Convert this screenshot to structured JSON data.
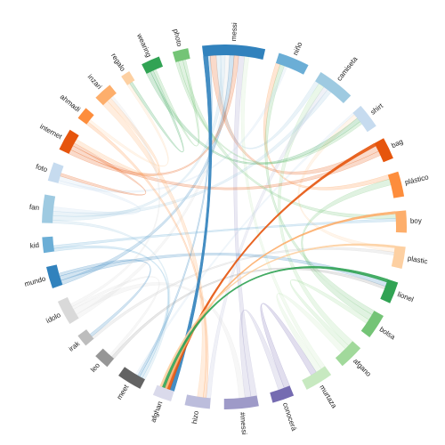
{
  "chart_data": {
    "type": "chord",
    "groups": [
      {
        "name": "messi",
        "color": "#3182bd",
        "value": 20
      },
      {
        "name": "niño",
        "color": "#6baed6",
        "value": 10
      },
      {
        "name": "camiseta",
        "color": "#9ecae1",
        "value": 12
      },
      {
        "name": "shirt",
        "color": "#c6dbef",
        "value": 8
      },
      {
        "name": "bag",
        "color": "#e6550d",
        "value": 7
      },
      {
        "name": "plástico",
        "color": "#fd8d3c",
        "value": 8
      },
      {
        "name": "boy",
        "color": "#fdae6b",
        "value": 7
      },
      {
        "name": "plastic",
        "color": "#fdd0a2",
        "value": 7
      },
      {
        "name": "lionel",
        "color": "#31a354",
        "value": 7
      },
      {
        "name": "bolsa",
        "color": "#74c476",
        "value": 8
      },
      {
        "name": "afgano",
        "color": "#a1d99b",
        "value": 8
      },
      {
        "name": "murtaza",
        "color": "#c7e9c0",
        "value": 9
      },
      {
        "name": "conocerá",
        "color": "#756bb1",
        "value": 7
      },
      {
        "name": "#messi",
        "color": "#9e9ac8",
        "value": 11
      },
      {
        "name": "hizo",
        "color": "#bcbddc",
        "value": 8
      },
      {
        "name": "afghan",
        "color": "#dadaeb",
        "value": 6
      },
      {
        "name": "meet",
        "color": "#636363",
        "value": 8
      },
      {
        "name": "leo",
        "color": "#969696",
        "value": 5
      },
      {
        "name": "irak",
        "color": "#bdbdbd",
        "value": 4
      },
      {
        "name": "ídolo",
        "color": "#d9d9d9",
        "value": 8
      },
      {
        "name": "mundo",
        "color": "#3182bd",
        "value": 7
      },
      {
        "name": "kid",
        "color": "#6baed6",
        "value": 5
      },
      {
        "name": "fan",
        "color": "#9ecae1",
        "value": 9
      },
      {
        "name": "foto",
        "color": "#c6dbef",
        "value": 6
      },
      {
        "name": "internet",
        "color": "#e6550d",
        "value": 7
      },
      {
        "name": "ahmadi",
        "color": "#fd8d3c",
        "value": 4
      },
      {
        "name": "inzari",
        "color": "#fdae6b",
        "value": 6
      },
      {
        "name": "regalo",
        "color": "#fdd0a2",
        "value": 3
      },
      {
        "name": "wearing",
        "color": "#31a354",
        "value": 6
      },
      {
        "name": "photo",
        "color": "#74c476",
        "value": 5
      }
    ],
    "highlight": "afghan",
    "links": [
      {
        "source": "afghan",
        "target": "messi",
        "value": 1.5
      },
      {
        "source": "afghan",
        "target": "bag",
        "value": 1
      },
      {
        "source": "afghan",
        "target": "boy",
        "value": 0.8
      },
      {
        "source": "afghan",
        "target": "lionel",
        "value": 1
      },
      {
        "source": "afghan",
        "target": "plastic",
        "value": 0.7
      },
      {
        "source": "meet",
        "target": "fan",
        "value": 1
      },
      {
        "source": "meet",
        "target": "kid",
        "value": 1
      },
      {
        "source": "meet",
        "target": "messi",
        "value": 0.8
      },
      {
        "source": "meet",
        "target": "shirt",
        "value": 0.8
      },
      {
        "source": "messi",
        "target": "bag",
        "value": 2
      },
      {
        "source": "messi",
        "target": "camiseta",
        "value": 1.5
      },
      {
        "source": "messi",
        "target": "fan",
        "value": 1.5
      },
      {
        "source": "messi",
        "target": "ídolo",
        "value": 1.5
      },
      {
        "source": "messi",
        "target": "mundo",
        "value": 1.5
      },
      {
        "source": "messi",
        "target": "internet",
        "value": 1.5
      },
      {
        "source": "messi",
        "target": "#messi",
        "value": 2
      },
      {
        "source": "messi",
        "target": "murtaza",
        "value": 1.5
      },
      {
        "source": "niño",
        "target": "plástico",
        "value": 1.5
      },
      {
        "source": "niño",
        "target": "bolsa",
        "value": 1.5
      },
      {
        "source": "niño",
        "target": "foto",
        "value": 1
      },
      {
        "source": "camiseta",
        "target": "afgano",
        "value": 2
      },
      {
        "source": "camiseta",
        "target": "hizo",
        "value": 1.5
      },
      {
        "source": "camiseta",
        "target": "fan",
        "value": 1.5
      },
      {
        "source": "shirt",
        "target": "plastic",
        "value": 1.5
      },
      {
        "source": "shirt",
        "target": "wearing",
        "value": 1.5
      },
      {
        "source": "shirt",
        "target": "photo",
        "value": 1
      },
      {
        "source": "bag",
        "target": "internet",
        "value": 1.5
      },
      {
        "source": "plástico",
        "target": "bolsa",
        "value": 2
      },
      {
        "source": "boy",
        "target": "photo",
        "value": 1.5
      },
      {
        "source": "boy",
        "target": "kid",
        "value": 1
      },
      {
        "source": "plastic",
        "target": "irak",
        "value": 1
      },
      {
        "source": "lionel",
        "target": "mundo",
        "value": 1.5
      },
      {
        "source": "lionel",
        "target": "leo",
        "value": 1
      },
      {
        "source": "bolsa",
        "target": "afgano",
        "value": 1.5
      },
      {
        "source": "afgano",
        "target": "murtaza",
        "value": 2
      },
      {
        "source": "murtaza",
        "target": "conocerá",
        "value": 2
      },
      {
        "source": "conocerá",
        "target": "#messi",
        "value": 2
      },
      {
        "source": "#messi",
        "target": "ídolo",
        "value": 2
      },
      {
        "source": "hizo",
        "target": "ahmadi",
        "value": 1
      },
      {
        "source": "hizo",
        "target": "inzari",
        "value": 2
      },
      {
        "source": "leo",
        "target": "ídolo",
        "value": 1
      },
      {
        "source": "irak",
        "target": "mundo",
        "value": 1
      },
      {
        "source": "fan",
        "target": "foto",
        "value": 1.5
      },
      {
        "source": "foto",
        "target": "internet",
        "value": 1
      },
      {
        "source": "internet",
        "target": "inzari",
        "value": 1.5
      },
      {
        "source": "ahmadi",
        "target": "regalo",
        "value": 1
      },
      {
        "source": "regalo",
        "target": "wearing",
        "value": 1
      },
      {
        "source": "wearing",
        "target": "photo",
        "value": 1
      },
      {
        "source": "inzari",
        "target": "ídolo",
        "value": 1
      }
    ]
  }
}
